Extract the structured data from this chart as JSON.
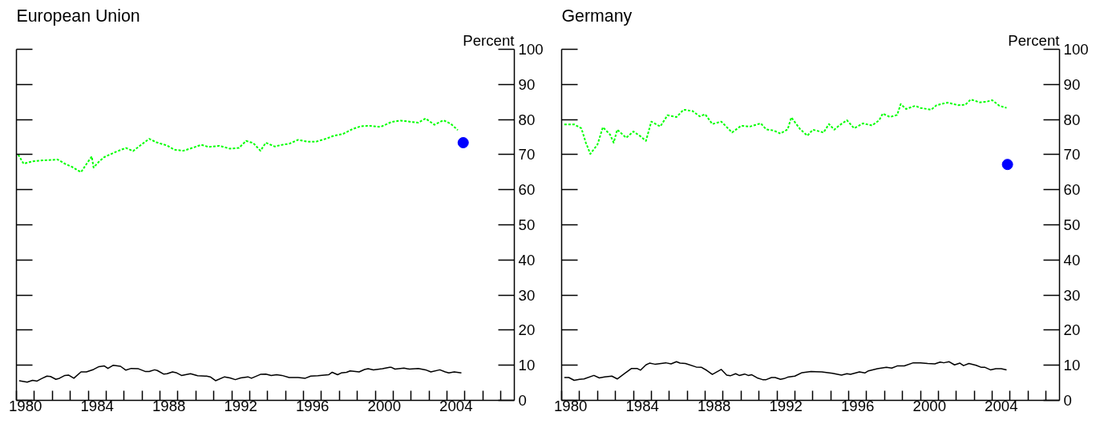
{
  "chart_data": [
    {
      "type": "line",
      "title": "European Union",
      "ylabel": "Percent",
      "xlim": [
        1980,
        2007.75
      ],
      "ylim": [
        0,
        100
      ],
      "yticks": [
        0,
        10,
        20,
        30,
        40,
        50,
        60,
        70,
        80,
        90,
        100
      ],
      "xticks": [
        {
          "value": 1980,
          "label": null
        },
        {
          "value": 1981,
          "label": null
        },
        {
          "value": 1982,
          "label": null
        },
        {
          "value": 1983,
          "label": null
        },
        {
          "value": 1984,
          "label": null
        },
        {
          "value": 1985,
          "label": null
        },
        {
          "value": 1986,
          "label": null
        },
        {
          "value": 1987,
          "label": null
        },
        {
          "value": 1988,
          "label": null
        },
        {
          "value": 1989,
          "label": null
        },
        {
          "value": 1990,
          "label": null
        },
        {
          "value": 1991,
          "label": null
        },
        {
          "value": 1992,
          "label": null
        },
        {
          "value": 1993,
          "label": null
        },
        {
          "value": 1994,
          "label": null
        },
        {
          "value": 1995,
          "label": null
        },
        {
          "value": 1996,
          "label": null
        },
        {
          "value": 1997,
          "label": null
        },
        {
          "value": 1998,
          "label": null
        },
        {
          "value": 1999,
          "label": null
        },
        {
          "value": 2000,
          "label": null
        },
        {
          "value": 2001,
          "label": null
        },
        {
          "value": 2002,
          "label": null
        },
        {
          "value": 2003,
          "label": null
        },
        {
          "value": 2004,
          "label": null
        },
        {
          "value": 2005,
          "label": null
        },
        {
          "value": 2006,
          "label": null
        },
        {
          "value": 2007,
          "label": null
        },
        {
          "value": 1980.5,
          "label": "1980"
        },
        {
          "value": 1984.5,
          "label": "1984"
        },
        {
          "value": 1988.5,
          "label": "1988"
        },
        {
          "value": 1992.5,
          "label": "1992"
        },
        {
          "value": 1996.5,
          "label": "1996"
        },
        {
          "value": 2000.5,
          "label": "2000"
        },
        {
          "value": 2004.5,
          "label": "2004"
        }
      ],
      "grid": false,
      "series": [
        {
          "color": "#000000",
          "line_style": "solid",
          "x": [
            1980.15,
            1980.6,
            1980.9,
            1981.15,
            1981.4,
            1981.7,
            1981.9,
            1982.2,
            1982.4,
            1982.7,
            1982.9,
            1983.2,
            1983.6,
            1983.9,
            1984.3,
            1984.6,
            1984.9,
            1985.1,
            1985.4,
            1985.8,
            1986.1,
            1986.4,
            1986.8,
            1987.2,
            1987.4,
            1987.7,
            1987.85,
            1988.2,
            1988.4,
            1988.7,
            1988.9,
            1989.2,
            1989.7,
            1990.1,
            1990.6,
            1990.8,
            1991.1,
            1991.6,
            1991.9,
            1992.2,
            1992.5,
            1992.9,
            1993.1,
            1993.6,
            1993.9,
            1994.2,
            1994.5,
            1994.8,
            1995.2,
            1995.7,
            1996.1,
            1996.4,
            1996.8,
            1997.4,
            1997.6,
            1997.9,
            1998.1,
            1998.4,
            1998.6,
            1999.1,
            1999.4,
            1999.6,
            1999.9,
            2000.4,
            2000.8,
            2000.9,
            2001.1,
            2001.6,
            2001.9,
            2002.4,
            2002.8,
            2003.1,
            2003.6,
            2003.9,
            2004.1,
            2004.4,
            2004.8
          ],
          "values": [
            5.6,
            5.2,
            5.7,
            5.5,
            6.2,
            6.9,
            6.8,
            6.0,
            6.3,
            7.1,
            7.2,
            6.3,
            8.1,
            8.1,
            8.8,
            9.6,
            9.8,
            9.1,
            10.0,
            9.7,
            8.6,
            9.1,
            9.0,
            8.2,
            8.2,
            8.7,
            8.5,
            7.5,
            7.6,
            8.1,
            7.9,
            7.1,
            7.6,
            7.0,
            6.9,
            6.7,
            5.6,
            6.7,
            6.4,
            5.9,
            6.4,
            6.7,
            6.3,
            7.4,
            7.5,
            7.1,
            7.3,
            7.1,
            6.5,
            6.5,
            6.3,
            6.9,
            7.0,
            7.3,
            8.0,
            7.3,
            7.8,
            8.0,
            8.4,
            8.1,
            8.8,
            9.0,
            8.7,
            9.0,
            9.4,
            9.4,
            8.9,
            9.2,
            8.9,
            9.1,
            8.7,
            8.1,
            8.7,
            8.1,
            7.8,
            8.1,
            7.8
          ]
        },
        {
          "color": "#00ff00",
          "line_style": "dotted",
          "x": [
            1980.1,
            1980.4,
            1980.9,
            1981.6,
            1982.3,
            1982.7,
            1983.1,
            1983.6,
            1983.9,
            1984.2,
            1984.3,
            1984.6,
            1984.9,
            1985.5,
            1986.1,
            1986.2,
            1986.5,
            1986.9,
            1987.4,
            1987.8,
            1988.4,
            1988.8,
            1989.3,
            1989.8,
            1990.3,
            1990.7,
            1991.3,
            1991.9,
            1992.4,
            1992.8,
            1993.2,
            1993.6,
            1993.9,
            1994.4,
            1994.8,
            1995.2,
            1995.7,
            1996.2,
            1996.7,
            1997.3,
            1997.7,
            1998.2,
            1998.7,
            1999.2,
            1999.7,
            2000.3,
            2000.9,
            2001.4,
            2001.9,
            2002.4,
            2002.8,
            2003.3,
            2003.8,
            2004.2,
            2004.6
          ],
          "values": [
            70.0,
            67.4,
            68.1,
            68.4,
            68.6,
            67.4,
            66.5,
            65.0,
            67.3,
            69.5,
            66.3,
            68.0,
            69.3,
            70.7,
            71.9,
            71.7,
            71.0,
            72.6,
            74.5,
            73.5,
            72.6,
            71.4,
            71.1,
            71.9,
            72.8,
            72.2,
            72.5,
            71.7,
            71.9,
            73.9,
            73.3,
            71.1,
            73.4,
            72.3,
            72.8,
            73.1,
            74.2,
            73.7,
            73.7,
            74.6,
            75.4,
            75.9,
            77.2,
            78.1,
            78.2,
            77.9,
            79.3,
            79.7,
            79.4,
            79.1,
            80.3,
            78.5,
            79.8,
            78.8,
            77.0
          ]
        },
        {
          "type": "scatter",
          "color": "#0000ff",
          "marker": "circle",
          "x": [
            2004.9
          ],
          "values": [
            73.4
          ]
        }
      ]
    },
    {
      "type": "line",
      "title": "Germany",
      "ylabel": "Percent",
      "xlim": [
        1980,
        2007.75
      ],
      "ylim": [
        0,
        100
      ],
      "yticks": [
        0,
        10,
        20,
        30,
        40,
        50,
        60,
        70,
        80,
        90,
        100
      ],
      "xticks": [
        {
          "value": 1980,
          "label": null
        },
        {
          "value": 1981,
          "label": null
        },
        {
          "value": 1982,
          "label": null
        },
        {
          "value": 1983,
          "label": null
        },
        {
          "value": 1984,
          "label": null
        },
        {
          "value": 1985,
          "label": null
        },
        {
          "value": 1986,
          "label": null
        },
        {
          "value": 1987,
          "label": null
        },
        {
          "value": 1988,
          "label": null
        },
        {
          "value": 1989,
          "label": null
        },
        {
          "value": 1990,
          "label": null
        },
        {
          "value": 1991,
          "label": null
        },
        {
          "value": 1992,
          "label": null
        },
        {
          "value": 1993,
          "label": null
        },
        {
          "value": 1994,
          "label": null
        },
        {
          "value": 1995,
          "label": null
        },
        {
          "value": 1996,
          "label": null
        },
        {
          "value": 1997,
          "label": null
        },
        {
          "value": 1998,
          "label": null
        },
        {
          "value": 1999,
          "label": null
        },
        {
          "value": 2000,
          "label": null
        },
        {
          "value": 2001,
          "label": null
        },
        {
          "value": 2002,
          "label": null
        },
        {
          "value": 2003,
          "label": null
        },
        {
          "value": 2004,
          "label": null
        },
        {
          "value": 2005,
          "label": null
        },
        {
          "value": 2006,
          "label": null
        },
        {
          "value": 2007,
          "label": null
        },
        {
          "value": 1980.5,
          "label": "1980"
        },
        {
          "value": 1984.5,
          "label": "1984"
        },
        {
          "value": 1988.5,
          "label": "1988"
        },
        {
          "value": 1992.5,
          "label": "1992"
        },
        {
          "value": 1996.5,
          "label": "1996"
        },
        {
          "value": 2000.5,
          "label": "2000"
        },
        {
          "value": 2004.5,
          "label": "2004"
        }
      ],
      "grid": false,
      "series": [
        {
          "color": "#000000",
          "line_style": "solid",
          "x": [
            1980.15,
            1980.4,
            1980.7,
            1981.0,
            1981.25,
            1981.8,
            1982.1,
            1982.4,
            1982.8,
            1983.1,
            1983.5,
            1983.9,
            1984.2,
            1984.4,
            1984.7,
            1984.9,
            1985.2,
            1985.8,
            1986.1,
            1986.4,
            1986.6,
            1986.9,
            1987.5,
            1987.8,
            1988.1,
            1988.4,
            1988.9,
            1989.2,
            1989.4,
            1989.7,
            1989.9,
            1990.2,
            1990.4,
            1990.6,
            1990.9,
            1991.2,
            1991.4,
            1991.7,
            1991.9,
            1992.2,
            1992.4,
            1992.6,
            1993.0,
            1993.4,
            1993.9,
            1994.5,
            1995.1,
            1995.6,
            1995.9,
            1996.1,
            1996.6,
            1996.9,
            1997.1,
            1997.6,
            1998.1,
            1998.4,
            1998.7,
            1999.1,
            1999.6,
            2000.0,
            2000.4,
            2000.8,
            2001.1,
            2001.3,
            2001.6,
            2001.9,
            2002.2,
            2002.4,
            2002.7,
            2003.1,
            2003.4,
            2003.6,
            2003.9,
            2004.2,
            2004.5,
            2004.8
          ],
          "values": [
            6.5,
            6.5,
            5.7,
            6.0,
            6.1,
            7.1,
            6.4,
            6.7,
            6.9,
            6.1,
            7.6,
            9.1,
            9.1,
            8.6,
            10.1,
            10.6,
            10.3,
            10.7,
            10.4,
            11.0,
            10.6,
            10.5,
            9.5,
            9.4,
            8.5,
            7.4,
            8.8,
            7.2,
            7.0,
            7.6,
            7.1,
            7.5,
            7.1,
            7.3,
            6.4,
            5.9,
            5.9,
            6.5,
            6.5,
            6.0,
            6.2,
            6.6,
            6.9,
            7.9,
            8.2,
            8.1,
            7.7,
            7.2,
            7.6,
            7.4,
            8.1,
            7.8,
            8.4,
            9.0,
            9.4,
            9.2,
            9.8,
            9.8,
            10.7,
            10.7,
            10.5,
            10.4,
            10.9,
            10.7,
            11.0,
            10.1,
            10.6,
            9.9,
            10.5,
            10.0,
            9.4,
            9.4,
            8.7,
            9.0,
            9.0,
            8.7
          ]
        },
        {
          "color": "#00ff00",
          "line_style": "dotted",
          "x": [
            1980.15,
            1980.7,
            1981.1,
            1981.35,
            1981.6,
            1982.0,
            1982.3,
            1982.7,
            1982.9,
            1983.1,
            1983.6,
            1984.0,
            1984.4,
            1984.7,
            1985.0,
            1985.5,
            1985.9,
            1986.4,
            1986.8,
            1987.3,
            1987.7,
            1988.0,
            1988.4,
            1988.9,
            1989.5,
            1990.0,
            1990.5,
            1991.1,
            1991.4,
            1991.8,
            1992.2,
            1992.6,
            1992.8,
            1993.3,
            1993.7,
            1994.0,
            1994.6,
            1994.9,
            1995.2,
            1995.5,
            1995.9,
            1996.3,
            1996.8,
            1997.3,
            1997.7,
            1997.9,
            1998.3,
            1998.7,
            1998.9,
            1999.2,
            1999.7,
            2000.0,
            2000.6,
            2000.9,
            2001.5,
            2002.1,
            2002.5,
            2002.8,
            2003.3,
            2003.7,
            2004.0,
            2004.4,
            2004.8
          ],
          "values": [
            78.6,
            78.6,
            77.5,
            73.4,
            70.2,
            72.9,
            77.8,
            75.7,
            73.4,
            77.1,
            74.8,
            76.6,
            75.2,
            73.9,
            79.4,
            78.0,
            81.2,
            80.7,
            82.8,
            82.4,
            80.9,
            81.5,
            78.7,
            79.4,
            76.3,
            78.2,
            78.0,
            78.9,
            77.2,
            76.9,
            76.0,
            77.2,
            80.6,
            77.2,
            75.4,
            77.1,
            76.3,
            78.7,
            77.1,
            78.4,
            79.8,
            77.5,
            78.9,
            78.3,
            79.8,
            81.7,
            80.7,
            81.3,
            84.4,
            83.0,
            83.9,
            83.3,
            82.8,
            84.1,
            84.8,
            84.1,
            84.2,
            85.7,
            84.9,
            85.1,
            85.5,
            83.9,
            83.3
          ]
        },
        {
          "type": "scatter",
          "color": "#0000ff",
          "marker": "circle",
          "x": [
            2004.85
          ],
          "values": [
            67.2
          ]
        }
      ]
    }
  ]
}
